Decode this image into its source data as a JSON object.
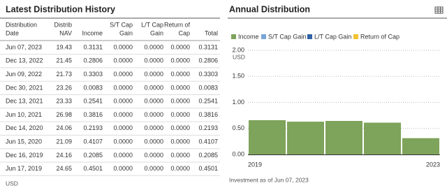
{
  "table": {
    "title": "Latest Distribution History",
    "headers": [
      [
        "Distribution",
        "Date"
      ],
      [
        "Distrib",
        "NAV"
      ],
      [
        "Income"
      ],
      [
        "S/T Cap",
        "Gain"
      ],
      [
        "L/T Cap",
        "Gain"
      ],
      [
        "Return of",
        "Cap"
      ],
      [
        "Total"
      ]
    ],
    "rows": [
      [
        "Jun 07, 2023",
        "19.43",
        "0.3131",
        "0.0000",
        "0.0000",
        "0.0000",
        "0.3131"
      ],
      [
        "Dec 13, 2022",
        "21.45",
        "0.2806",
        "0.0000",
        "0.0000",
        "0.0000",
        "0.2806"
      ],
      [
        "Jun 09, 2022",
        "21.73",
        "0.3303",
        "0.0000",
        "0.0000",
        "0.0000",
        "0.3303"
      ],
      [
        "Dec 30, 2021",
        "23.26",
        "0.0083",
        "0.0000",
        "0.0000",
        "0.0000",
        "0.0083"
      ],
      [
        "Dec 13, 2021",
        "23.33",
        "0.2541",
        "0.0000",
        "0.0000",
        "0.0000",
        "0.2541"
      ],
      [
        "Jun 10, 2021",
        "26.98",
        "0.3816",
        "0.0000",
        "0.0000",
        "0.0000",
        "0.3816"
      ],
      [
        "Dec 14, 2020",
        "24.06",
        "0.2193",
        "0.0000",
        "0.0000",
        "0.0000",
        "0.2193"
      ],
      [
        "Jun 15, 2020",
        "21.09",
        "0.4107",
        "0.0000",
        "0.0000",
        "0.0000",
        "0.4107"
      ],
      [
        "Dec 16, 2019",
        "24.16",
        "0.2085",
        "0.0000",
        "0.0000",
        "0.0000",
        "0.2085"
      ],
      [
        "Jun 17, 2019",
        "24.65",
        "0.4501",
        "0.0000",
        "0.0000",
        "0.0000",
        "0.4501"
      ]
    ],
    "footnote": "USD"
  },
  "chart_data": {
    "type": "bar",
    "title": "Annual Distribution",
    "y_unit": "USD",
    "categories": [
      "2019",
      null,
      null,
      null,
      "2023"
    ],
    "series": [
      {
        "name": "Income",
        "color": "#7ea35a",
        "values": [
          0.6586,
          0.63,
          0.644,
          0.6109,
          0.3131
        ]
      },
      {
        "name": "S/T Cap Gain",
        "color": "#79a6d8",
        "values": [
          0,
          0,
          0,
          0,
          0
        ]
      },
      {
        "name": "L/T Cap Gain",
        "color": "#2f62a8",
        "values": [
          0,
          0,
          0,
          0,
          0
        ]
      },
      {
        "name": "Return of Cap",
        "color": "#f0c330",
        "values": [
          0,
          0,
          0,
          0,
          0
        ]
      }
    ],
    "stacked": true,
    "ylim": [
      0,
      2
    ],
    "yticks": [
      {
        "value": 0,
        "label": "0.00"
      },
      {
        "value": 0.5,
        "label": "0.50"
      },
      {
        "value": 1,
        "label": "1.00"
      },
      {
        "value": 1.5,
        "label": "1.50"
      },
      {
        "value": 2,
        "label": "2.00"
      }
    ],
    "grid": true,
    "note": "Investment as of Jun 07, 2023"
  }
}
